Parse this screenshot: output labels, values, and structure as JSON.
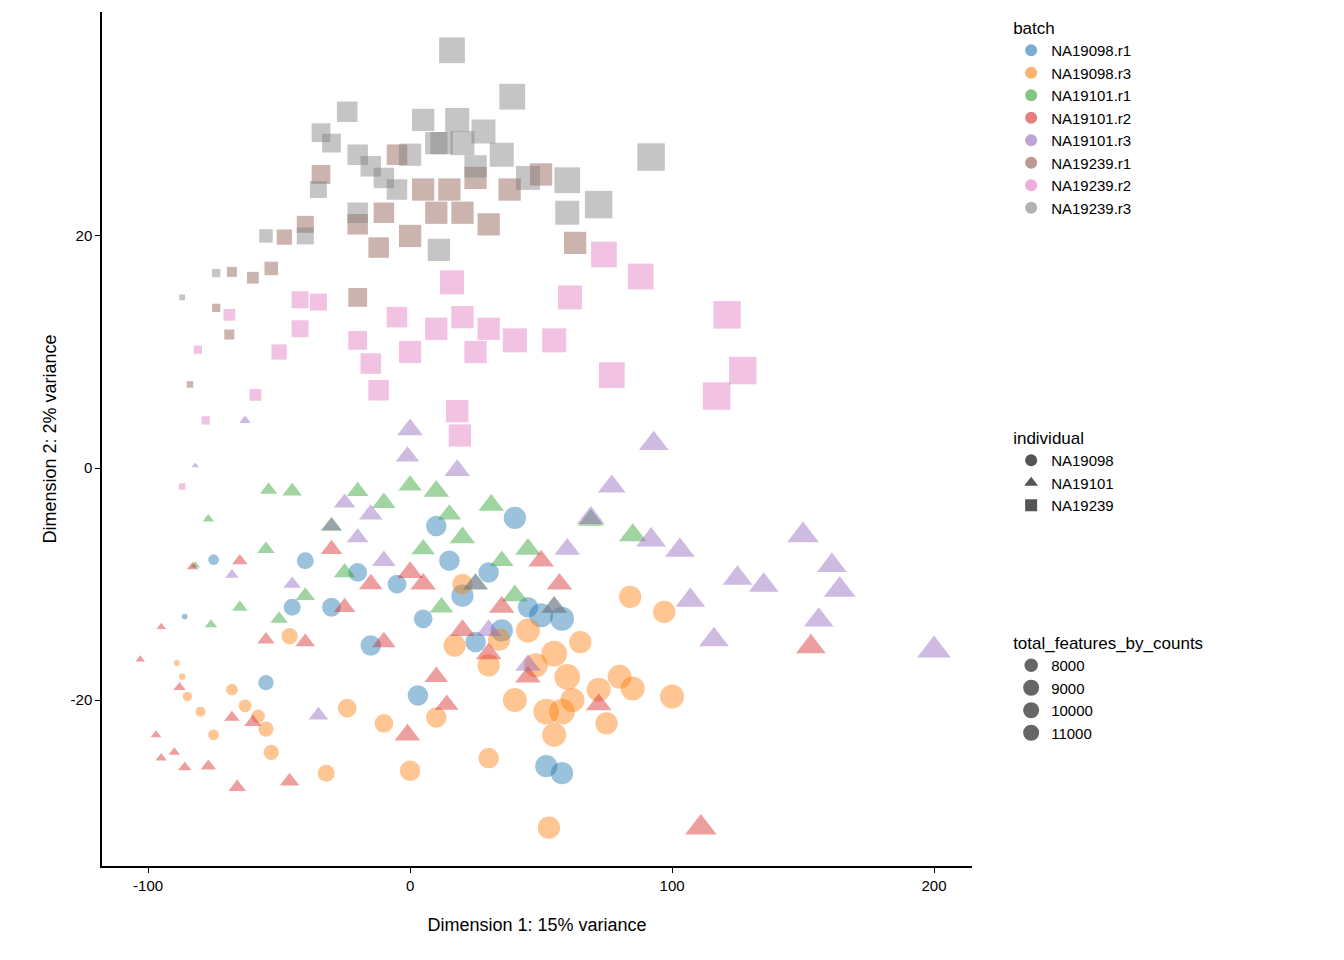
{
  "chart_data": {
    "type": "scatter",
    "xlabel": "Dimension 1: 15% variance",
    "ylabel": "Dimension 2: 2% variance",
    "xlim": [
      -117.6,
      214.5
    ],
    "ylim": [
      -34.3,
      39.3
    ],
    "xticks": [
      -100,
      0,
      100,
      200
    ],
    "yticks": [
      -20,
      0,
      20
    ],
    "grid": false,
    "color_legend_title": "batch",
    "shape_legend": {
      "title": "individual",
      "entries": [
        {
          "name": "NA19098",
          "marker": "circle"
        },
        {
          "name": "NA19101",
          "marker": "triangle"
        },
        {
          "name": "NA19239",
          "marker": "square"
        }
      ]
    },
    "size_legend": {
      "title": "total_features_by_counts",
      "values": [
        8000,
        9000,
        10000,
        11000
      ]
    },
    "series": [
      {
        "name": "NA19098.r1",
        "individual": "NA19098",
        "color": "#1f77b4",
        "x": [
          -86,
          -75,
          -55,
          -40,
          -30,
          -15,
          -5,
          3,
          5,
          15,
          20,
          30,
          35,
          40,
          45,
          50,
          58,
          52,
          58,
          -45,
          -20,
          25,
          10
        ],
        "y": [
          -12.8,
          -7.9,
          -18.5,
          -8,
          -12,
          -15.3,
          -10,
          -19.6,
          -13,
          -8,
          -11,
          -9,
          -14,
          -4.3,
          -12,
          -12.7,
          -13,
          -25.7,
          -26.3,
          -12,
          -9,
          -15,
          -5
        ],
        "size": [
          5800,
          7200,
          8500,
          9000,
          9500,
          10000,
          9500,
          10000,
          9500,
          10000,
          10500,
          10000,
          10500,
          10500,
          10000,
          11000,
          11000,
          10500,
          10500,
          9000,
          9500,
          10000,
          10000
        ]
      },
      {
        "name": "NA19098.r3",
        "individual": "NA19098",
        "color": "#ff7f0e",
        "x": [
          -89,
          -87,
          -85,
          -80,
          -75,
          -68,
          -63,
          -58,
          -55,
          -53,
          -32,
          -46,
          -24,
          -10,
          0,
          10,
          17,
          20,
          30,
          34,
          40,
          45,
          48,
          52,
          55,
          60,
          62,
          65,
          72,
          75,
          80,
          84,
          97,
          100,
          85,
          53,
          55,
          30,
          58
        ],
        "y": [
          -16.8,
          -18,
          -19.7,
          -21,
          -23,
          -19.1,
          -20.5,
          -21.4,
          -22.5,
          -24.5,
          -26.3,
          -14.5,
          -20.7,
          -22,
          -26.1,
          -21.5,
          -15.3,
          -10,
          -17,
          -14.8,
          -20,
          -14,
          -17,
          -21,
          -23,
          -18,
          -20,
          -15,
          -19.1,
          -22,
          -18,
          -11.1,
          -12.4,
          -19.7,
          -19,
          -31,
          -16,
          -25,
          -21
        ],
        "size": [
          5800,
          6000,
          6800,
          7000,
          7200,
          7500,
          7800,
          8000,
          8500,
          8500,
          9000,
          8800,
          9500,
          9500,
          10000,
          10000,
          10500,
          10000,
          10500,
          10500,
          11000,
          11000,
          11000,
          11500,
          11000,
          11500,
          11000,
          10500,
          11000,
          10500,
          11000,
          10500,
          10500,
          11000,
          11000,
          10500,
          11500,
          10000,
          11500
        ]
      },
      {
        "name": "NA19101.r1",
        "individual": "NA19101",
        "color": "#2ca02c",
        "x": [
          -82,
          -77,
          -76,
          -55,
          -54,
          -45,
          -40,
          -30,
          -20,
          -10,
          0,
          5,
          10,
          15,
          20,
          25,
          31,
          35,
          40,
          45,
          55,
          69,
          85,
          -65,
          -50,
          -25,
          12
        ],
        "y": [
          -8.4,
          -4.4,
          -13.5,
          -7,
          -1.9,
          -2,
          -11,
          -5,
          -2,
          -3,
          -1.5,
          -7,
          -2,
          -4,
          -6,
          -10,
          -3.2,
          -8,
          -11,
          -7,
          -12,
          -4.5,
          -5.8,
          -12,
          -13,
          -9,
          -12
        ],
        "size": [
          6500,
          7000,
          7200,
          8500,
          8500,
          9000,
          9000,
          9500,
          9500,
          10000,
          10000,
          10000,
          10500,
          10000,
          10500,
          10500,
          10500,
          10000,
          10500,
          10500,
          10500,
          10500,
          11000,
          8000,
          8500,
          9500,
          10000
        ]
      },
      {
        "name": "NA19101.r2",
        "individual": "NA19101",
        "color": "#d62728",
        "x": [
          -103,
          -95,
          -97,
          -95,
          -90,
          -88,
          -86,
          -77,
          -66,
          -68,
          -83,
          -65,
          -55,
          -60,
          -46,
          -40,
          -30,
          -25,
          -15,
          -10,
          -1,
          5,
          10,
          14,
          20,
          30,
          35,
          45,
          50,
          57,
          72,
          111,
          153,
          0
        ],
        "y": [
          -16.5,
          -13.7,
          -23,
          -25,
          -24.5,
          -18.9,
          -25.8,
          -25.7,
          -27.5,
          -21.5,
          -8.5,
          -8,
          -14.8,
          -21.9,
          -27,
          -15,
          -7,
          -12,
          -10,
          -15,
          -23,
          -10,
          -18,
          -20.4,
          -14,
          -16,
          -12,
          -18,
          -8,
          -10,
          -20.4,
          -31,
          -15.4,
          -9
        ],
        "size": [
          6500,
          6500,
          6800,
          7000,
          7000,
          7200,
          7500,
          8000,
          8500,
          8000,
          7000,
          8000,
          8500,
          8500,
          9000,
          9000,
          9500,
          9500,
          10000,
          10000,
          10500,
          10500,
          10000,
          10000,
          10500,
          10500,
          10500,
          10500,
          10500,
          10500,
          10500,
          12000,
          11500,
          10500
        ]
      },
      {
        "name": "NA19101.r3",
        "individual": "NA19101",
        "color": "#9467bd",
        "x": [
          -82,
          -63,
          -68,
          -45,
          -30,
          -25,
          -20,
          -15,
          -10,
          0,
          -1,
          18,
          25,
          30,
          45,
          55,
          60,
          69,
          77,
          92,
          93,
          103,
          107,
          116,
          125,
          135,
          150,
          161,
          164,
          156,
          200,
          -35
        ],
        "y": [
          0.2,
          4.1,
          -9.2,
          -10,
          -5,
          -3,
          -6,
          -4,
          -8,
          3.3,
          1,
          -0.2,
          -10,
          -14,
          -17,
          -12,
          -7,
          -4.3,
          -1.6,
          -6.2,
          2.1,
          -7.1,
          -11.4,
          -14.8,
          -9.5,
          -10.1,
          -5.8,
          -8.4,
          -10.5,
          -13.1,
          -15.7,
          -21.3
        ],
        "size": [
          6000,
          7000,
          7500,
          8500,
          9000,
          9500,
          9500,
          10000,
          10000,
          10500,
          10000,
          10500,
          10000,
          10500,
          10500,
          10500,
          10500,
          11000,
          11000,
          11500,
          11500,
          11500,
          11500,
          11500,
          11500,
          11500,
          12000,
          11500,
          12000,
          11500,
          12500,
          9000
        ]
      },
      {
        "name": "NA19239.r1",
        "individual": "NA19239",
        "color": "#8c564b",
        "x": [
          -84,
          -74,
          -68,
          -60,
          -53,
          -48,
          -40,
          -34,
          -20,
          -10,
          0,
          10,
          15,
          20,
          25,
          30,
          38,
          50,
          63,
          -69,
          -5,
          -12,
          -20,
          5
        ],
        "y": [
          7.2,
          13.8,
          16.9,
          16.4,
          17.2,
          19.9,
          21,
          25.3,
          21,
          22,
          20,
          22,
          24,
          22,
          25,
          21,
          24,
          25.3,
          19.4,
          11.5,
          27,
          19,
          14.7,
          24
        ],
        "size": [
          6000,
          6500,
          7000,
          7500,
          8000,
          8500,
          9000,
          9500,
          10000,
          10000,
          10500,
          10500,
          10500,
          10500,
          10500,
          10500,
          10500,
          10500,
          10500,
          7000,
          10000,
          10000,
          9500,
          10500
        ]
      },
      {
        "name": "NA19239.r2",
        "individual": "NA19239",
        "color": "#e377c2",
        "x": [
          -87,
          -78,
          -81,
          -59,
          -50,
          -42,
          -35,
          -20,
          -15,
          -12,
          -5,
          0,
          10,
          16,
          20,
          25,
          30,
          40,
          55,
          74,
          77,
          88,
          121,
          117,
          127,
          19,
          18,
          -69,
          -42,
          61
        ],
        "y": [
          -1.6,
          4.1,
          10.2,
          6.3,
          10,
          12,
          14.3,
          11,
          9,
          6.7,
          13,
          10,
          12,
          16,
          13,
          10,
          12,
          11,
          11,
          18.4,
          8,
          16.5,
          13.2,
          6.2,
          8.4,
          2.8,
          4.9,
          13.2,
          14.5,
          14.7
        ],
        "size": [
          6000,
          6500,
          6500,
          7500,
          8500,
          9000,
          9000,
          9500,
          10000,
          10000,
          10000,
          10500,
          10500,
          11000,
          10500,
          10500,
          10500,
          11000,
          11000,
          11500,
          11500,
          11500,
          12000,
          12000,
          12000,
          10500,
          10500,
          7500,
          9000,
          11000
        ]
      },
      {
        "name": "NA19239.r3",
        "individual": "NA19239",
        "color": "#7f7f7f",
        "x": [
          -87,
          -74,
          -55,
          -35,
          -30,
          -20,
          -10,
          0,
          5,
          16,
          10,
          20,
          25,
          39,
          35,
          45,
          60,
          60,
          72,
          92,
          -40,
          -20,
          11,
          -34,
          -24,
          12,
          18,
          28,
          -5,
          -15
        ],
        "y": [
          14.7,
          16.8,
          20,
          24,
          28,
          27,
          25,
          27,
          30,
          36,
          28,
          28,
          26,
          32,
          27,
          25,
          24.8,
          22,
          22.7,
          26.8,
          20,
          22,
          18.8,
          28.9,
          30.7,
          28,
          30,
          29,
          24,
          26
        ],
        "size": [
          5800,
          6500,
          8000,
          9000,
          9500,
          10000,
          10000,
          10500,
          10500,
          11500,
          10500,
          11000,
          10500,
          11500,
          11000,
          11000,
          11500,
          11000,
          12000,
          12000,
          9000,
          10000,
          10500,
          9500,
          10000,
          10500,
          11000,
          11000,
          10000,
          10000
        ]
      }
    ]
  }
}
